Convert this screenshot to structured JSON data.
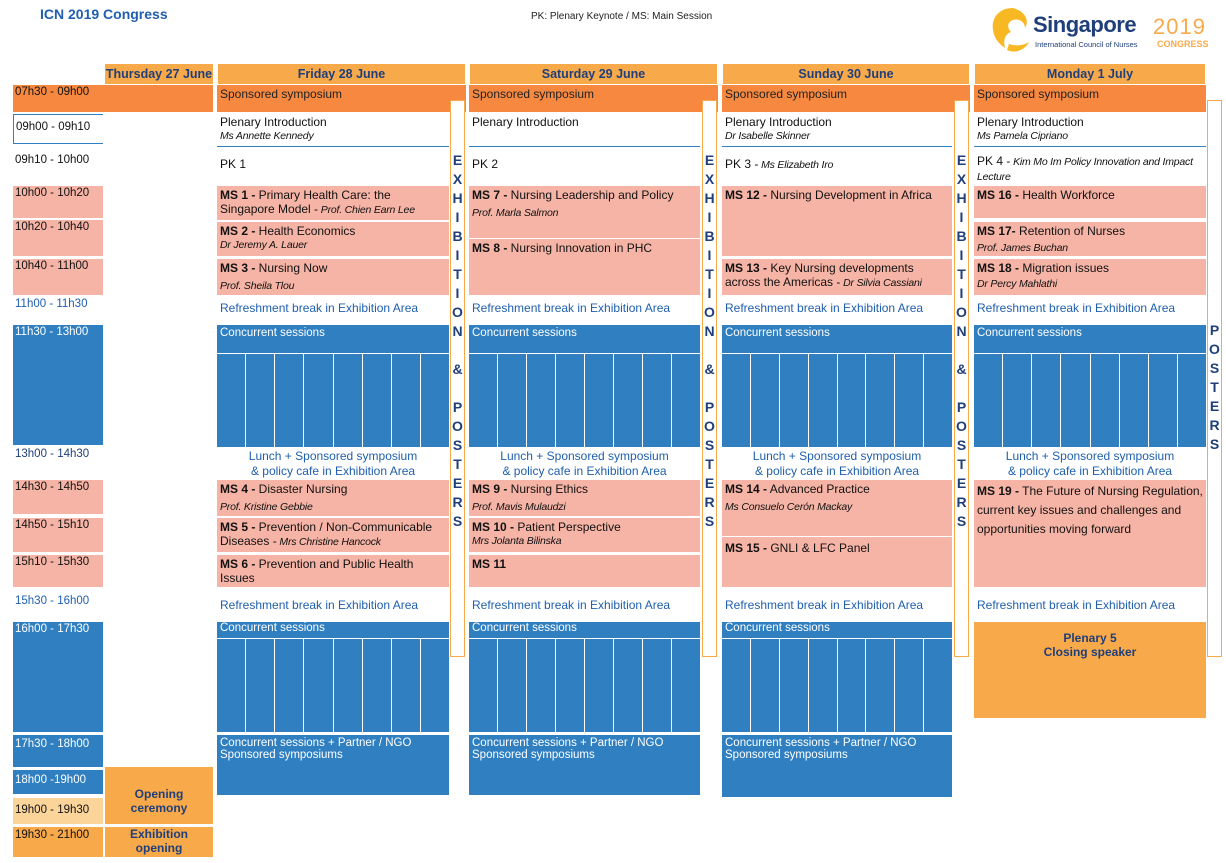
{
  "title": "ICN 2019 Congress",
  "legend": "PK: Plenary Keynote / MS: Main Session",
  "logo": {
    "word": "Singapore",
    "year": "2019",
    "sub": "International Council of Nurses",
    "congress": "CONGRESS"
  },
  "days": [
    "Thursday 27 June",
    "Friday 28 June",
    "Saturday 29 June",
    "Sunday 30 June",
    "Monday 1 July"
  ],
  "times": [
    "07h30 - 09h00",
    "09h00 - 09h10",
    "09h10 - 10h00",
    "10h00 - 10h20",
    "10h20 - 10h40",
    "10h40 - 11h00",
    "11h00 - 11h30",
    "11h30 - 13h00",
    "13h00 - 14h30",
    "14h30 - 14h50",
    "14h50 - 15h10",
    "15h10 - 15h30",
    "15h30 - 16h00",
    "16h00 - 17h30",
    "17h30 - 18h00",
    "18h00 -19h00",
    "19h00 - 19h30",
    "19h30 - 21h00"
  ],
  "common": {
    "sponsored": "Sponsored symposium",
    "plenary_intro": "Plenary Introduction",
    "refresh": "Refreshment break in Exhibition Area",
    "concurrent": "Concurrent sessions",
    "lunch1": "Lunch + Sponsored symposium",
    "lunch2": "& policy cafe in Exhibition Area",
    "partner1": "Concurrent sessions + Partner / NGO",
    "partner2": "Sponsored symposiums"
  },
  "exhibition_vertical": "EXHIBITION & POSTERS",
  "posters_vertical": "POSTERS",
  "thursday": {
    "opening": "Opening ceremony",
    "exhibition": "Exhibition opening"
  },
  "friday": {
    "pi_speaker": "Ms Annette Kennedy",
    "pk": "PK 1",
    "ms1_code": "MS 1 -",
    "ms1_title": " Primary Health Care: the Singapore  Model -",
    "ms1_speaker": " Prof. Chien Earn Lee",
    "ms2_code": "MS 2 -",
    "ms2_title": " Health Economics",
    "ms2_speaker": "Dr Jeremy A. Lauer",
    "ms3_code": "MS 3 -",
    "ms3_title": "  Nursing Now",
    "ms3_speaker": "Prof. Sheila Tlou",
    "ms4_code": "MS 4 -",
    "ms4_title": " Disaster Nursing",
    "ms4_speaker": "Prof. Kristine Gebbie",
    "ms5_code": "MS 5 -",
    "ms5_title": " Prevention / Non-Communicable Diseases -",
    "ms5_speaker": " Mrs Christine Hancock",
    "ms6_code": "MS 6 -",
    "ms6_title": " Prevention and Public Health Issues"
  },
  "saturday": {
    "pk": "PK 2",
    "ms7_code": "MS 7 -",
    "ms7_title": " Nursing Leadership and Policy",
    "ms7_speaker": "Prof. Marla Salmon",
    "ms8_code": "MS 8 -",
    "ms8_title": " Nursing Innovation in PHC",
    "ms9_code": "MS 9 -",
    "ms9_title": " Nursing Ethics",
    "ms9_speaker": "Prof. Mavis Mulaudzi",
    "ms10_code": "MS 10 -",
    "ms10_title": " Patient Perspective",
    "ms10_speaker": "Mrs Jolanta Bilinska",
    "ms11_code": "MS 11"
  },
  "sunday": {
    "pi_speaker": "Dr Isabelle Skinner",
    "pk_code": "PK 3 -",
    "pk_speaker": " Ms Elizabeth Iro",
    "ms12_code": "MS 12 -",
    "ms12_title": " Nursing Development in Africa",
    "ms13_code": "MS 13 -",
    "ms13_title": " Key Nursing developments across the Americas -",
    "ms13_speaker": " Dr Silvia Cassiani",
    "ms14_code": "MS 14 -",
    "ms14_title": " Advanced Practice",
    "ms14_speaker": "Ms Consuelo Cerón Mackay",
    "ms15_code": "MS 15 -",
    "ms15_title": " GNLI & LFC Panel"
  },
  "monday": {
    "pi_speaker": "Ms Pamela Cipriano",
    "pk_code": "PK 4 -",
    "pk_speaker": " Kim Mo Im Policy Innovation and Impact Lecture",
    "ms16_code": "MS 16 -",
    "ms16_title": " Health Workforce",
    "ms17_code": "MS 17-",
    "ms17_title": "  Retention of Nurses",
    "ms17_speaker": "Prof. James Buchan",
    "ms18_code": "MS 18 -",
    "ms18_title": " Migration issues",
    "ms18_speaker": "Dr Percy Mahlathi",
    "ms19_code": "MS 19 -",
    "ms19_title": " The Future of Nursing Regulation, current key issues and challenges and opportunities moving forward",
    "plenary5_a": "Plenary 5",
    "plenary5_b": "Closing speaker"
  },
  "colors": {
    "orange": "#f6893f",
    "light_orange": "#f8a94a",
    "salmon": "#f6b4a6",
    "blue": "#2f7fc1",
    "text_blue": "#1f5fae"
  }
}
